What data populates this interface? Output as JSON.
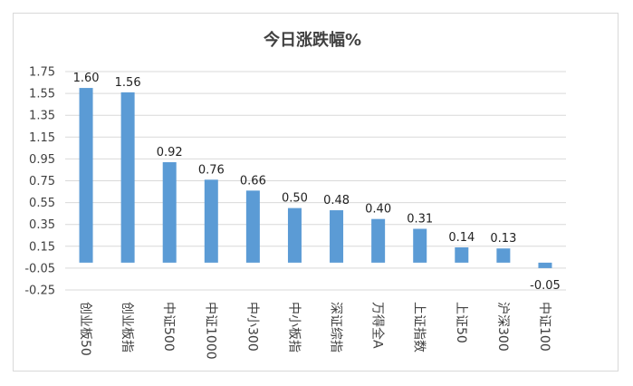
{
  "chart_data": {
    "type": "bar",
    "title": "今日涨跌幅%",
    "categories": [
      "创业板50",
      "创业板指",
      "中证500",
      "中证1000",
      "中小300",
      "中小板指",
      "深证综指",
      "万得全A",
      "上证指数",
      "上证50",
      "沪深300",
      "中证100"
    ],
    "values": [
      1.6,
      1.56,
      0.92,
      0.76,
      0.66,
      0.5,
      0.48,
      0.4,
      0.31,
      0.14,
      0.13,
      -0.05
    ],
    "data_labels": [
      "1.60",
      "1.56",
      "0.92",
      "0.76",
      "0.66",
      "0.50",
      "0.48",
      "0.40",
      "0.31",
      "0.14",
      "0.13",
      "-0.05"
    ],
    "y_ticks": [
      "1.75",
      "1.55",
      "1.35",
      "1.15",
      "0.95",
      "0.75",
      "0.55",
      "0.35",
      "0.15",
      "-0.05",
      "-0.25"
    ],
    "ylim": [
      -0.25,
      1.75
    ],
    "xlabel": "",
    "ylabel": "",
    "grid": true,
    "legend": "none",
    "bar_color": "#5b9bd5",
    "grid_color": "#d9d9d9"
  }
}
